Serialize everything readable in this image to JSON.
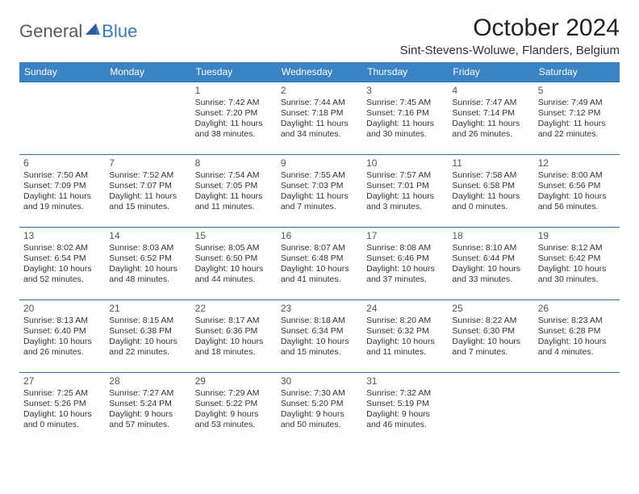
{
  "logo": {
    "text1": "General",
    "text2": "Blue"
  },
  "title": "October 2024",
  "location": "Sint-Stevens-Woluwe, Flanders, Belgium",
  "colors": {
    "header_bg": "#3a83c4",
    "header_text": "#ffffff",
    "row_border": "#2d6da8",
    "logo_gray": "#5a5a5a",
    "logo_blue": "#3a7ab8",
    "text": "#333333",
    "background": "#ffffff"
  },
  "typography": {
    "title_fontsize": 30,
    "location_fontsize": 15,
    "weekday_fontsize": 12,
    "daynum_fontsize": 12,
    "body_fontsize": 10.5
  },
  "weekdays": [
    "Sunday",
    "Monday",
    "Tuesday",
    "Wednesday",
    "Thursday",
    "Friday",
    "Saturday"
  ],
  "weeks": [
    [
      null,
      null,
      {
        "n": "1",
        "sr": "7:42 AM",
        "ss": "7:20 PM",
        "dl": "11 hours and 38 minutes."
      },
      {
        "n": "2",
        "sr": "7:44 AM",
        "ss": "7:18 PM",
        "dl": "11 hours and 34 minutes."
      },
      {
        "n": "3",
        "sr": "7:45 AM",
        "ss": "7:16 PM",
        "dl": "11 hours and 30 minutes."
      },
      {
        "n": "4",
        "sr": "7:47 AM",
        "ss": "7:14 PM",
        "dl": "11 hours and 26 minutes."
      },
      {
        "n": "5",
        "sr": "7:49 AM",
        "ss": "7:12 PM",
        "dl": "11 hours and 22 minutes."
      }
    ],
    [
      {
        "n": "6",
        "sr": "7:50 AM",
        "ss": "7:09 PM",
        "dl": "11 hours and 19 minutes."
      },
      {
        "n": "7",
        "sr": "7:52 AM",
        "ss": "7:07 PM",
        "dl": "11 hours and 15 minutes."
      },
      {
        "n": "8",
        "sr": "7:54 AM",
        "ss": "7:05 PM",
        "dl": "11 hours and 11 minutes."
      },
      {
        "n": "9",
        "sr": "7:55 AM",
        "ss": "7:03 PM",
        "dl": "11 hours and 7 minutes."
      },
      {
        "n": "10",
        "sr": "7:57 AM",
        "ss": "7:01 PM",
        "dl": "11 hours and 3 minutes."
      },
      {
        "n": "11",
        "sr": "7:58 AM",
        "ss": "6:58 PM",
        "dl": "11 hours and 0 minutes."
      },
      {
        "n": "12",
        "sr": "8:00 AM",
        "ss": "6:56 PM",
        "dl": "10 hours and 56 minutes."
      }
    ],
    [
      {
        "n": "13",
        "sr": "8:02 AM",
        "ss": "6:54 PM",
        "dl": "10 hours and 52 minutes."
      },
      {
        "n": "14",
        "sr": "8:03 AM",
        "ss": "6:52 PM",
        "dl": "10 hours and 48 minutes."
      },
      {
        "n": "15",
        "sr": "8:05 AM",
        "ss": "6:50 PM",
        "dl": "10 hours and 44 minutes."
      },
      {
        "n": "16",
        "sr": "8:07 AM",
        "ss": "6:48 PM",
        "dl": "10 hours and 41 minutes."
      },
      {
        "n": "17",
        "sr": "8:08 AM",
        "ss": "6:46 PM",
        "dl": "10 hours and 37 minutes."
      },
      {
        "n": "18",
        "sr": "8:10 AM",
        "ss": "6:44 PM",
        "dl": "10 hours and 33 minutes."
      },
      {
        "n": "19",
        "sr": "8:12 AM",
        "ss": "6:42 PM",
        "dl": "10 hours and 30 minutes."
      }
    ],
    [
      {
        "n": "20",
        "sr": "8:13 AM",
        "ss": "6:40 PM",
        "dl": "10 hours and 26 minutes."
      },
      {
        "n": "21",
        "sr": "8:15 AM",
        "ss": "6:38 PM",
        "dl": "10 hours and 22 minutes."
      },
      {
        "n": "22",
        "sr": "8:17 AM",
        "ss": "6:36 PM",
        "dl": "10 hours and 18 minutes."
      },
      {
        "n": "23",
        "sr": "8:18 AM",
        "ss": "6:34 PM",
        "dl": "10 hours and 15 minutes."
      },
      {
        "n": "24",
        "sr": "8:20 AM",
        "ss": "6:32 PM",
        "dl": "10 hours and 11 minutes."
      },
      {
        "n": "25",
        "sr": "8:22 AM",
        "ss": "6:30 PM",
        "dl": "10 hours and 7 minutes."
      },
      {
        "n": "26",
        "sr": "8:23 AM",
        "ss": "6:28 PM",
        "dl": "10 hours and 4 minutes."
      }
    ],
    [
      {
        "n": "27",
        "sr": "7:25 AM",
        "ss": "5:26 PM",
        "dl": "10 hours and 0 minutes."
      },
      {
        "n": "28",
        "sr": "7:27 AM",
        "ss": "5:24 PM",
        "dl": "9 hours and 57 minutes."
      },
      {
        "n": "29",
        "sr": "7:29 AM",
        "ss": "5:22 PM",
        "dl": "9 hours and 53 minutes."
      },
      {
        "n": "30",
        "sr": "7:30 AM",
        "ss": "5:20 PM",
        "dl": "9 hours and 50 minutes."
      },
      {
        "n": "31",
        "sr": "7:32 AM",
        "ss": "5:19 PM",
        "dl": "9 hours and 46 minutes."
      },
      null,
      null
    ]
  ],
  "labels": {
    "sunrise": "Sunrise:",
    "sunset": "Sunset:",
    "daylight": "Daylight:"
  }
}
